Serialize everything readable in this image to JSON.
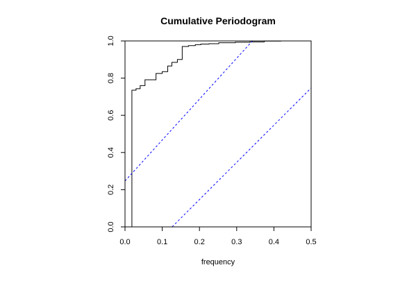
{
  "chart_data": {
    "type": "line",
    "title": "Cumulative Periodogram",
    "xlabel": "frequency",
    "ylabel": "",
    "xlim": [
      0.0,
      0.5
    ],
    "ylim": [
      0.0,
      1.0
    ],
    "x_ticks": [
      0.0,
      0.1,
      0.2,
      0.3,
      0.4,
      0.5
    ],
    "x_tick_labels": [
      "0.0",
      "0.1",
      "0.2",
      "0.3",
      "0.4",
      "0.5"
    ],
    "y_ticks": [
      0.0,
      0.2,
      0.4,
      0.6,
      0.8,
      1.0
    ],
    "y_tick_labels": [
      "0.0",
      "0.2",
      "0.4",
      "0.6",
      "0.8",
      "1.0"
    ],
    "grid": false,
    "series": [
      {
        "style": "step",
        "color": "#000000",
        "x": [
          0.0185,
          0.0185,
          0.0296,
          0.0296,
          0.0407,
          0.0407,
          0.0537,
          0.0537,
          0.0833,
          0.0833,
          0.1,
          0.1,
          0.1148,
          0.1148,
          0.1259,
          0.1259,
          0.1407,
          0.1407,
          0.1537,
          0.1537,
          0.1704,
          0.1704,
          0.1889,
          0.1889,
          0.2037,
          0.2037,
          0.2259,
          0.2259,
          0.2519,
          0.2519,
          0.2963,
          0.2963,
          0.3352,
          0.3352,
          0.3741,
          0.3741,
          0.4185,
          0.4185,
          0.5
        ],
        "y": [
          0.0,
          0.735,
          0.735,
          0.743,
          0.743,
          0.76,
          0.76,
          0.791,
          0.791,
          0.825,
          0.825,
          0.835,
          0.835,
          0.865,
          0.865,
          0.885,
          0.885,
          0.9,
          0.9,
          0.97,
          0.97,
          0.975,
          0.975,
          0.98,
          0.98,
          0.983,
          0.983,
          0.985,
          0.985,
          0.99,
          0.99,
          0.993,
          0.993,
          0.995,
          0.995,
          0.999,
          0.999,
          1.0,
          1.0
        ]
      },
      {
        "style": "dashed",
        "color": "#0000ff",
        "x": [
          0.0,
          0.5
        ],
        "y": [
          0.247,
          1.347
        ]
      },
      {
        "style": "dashed",
        "color": "#0000ff",
        "x": [
          0.0,
          0.5
        ],
        "y": [
          -0.253,
          0.747
        ]
      }
    ]
  }
}
